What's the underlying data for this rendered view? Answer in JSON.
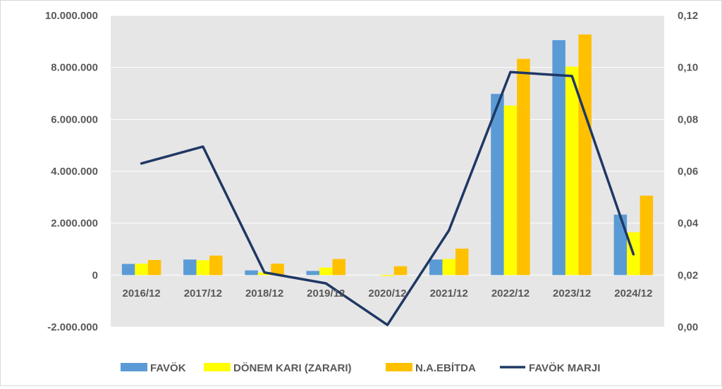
{
  "chart_data": {
    "type": "bar",
    "categories": [
      "2016/12",
      "2017/12",
      "2018/12",
      "2019/12",
      "2020/12",
      "2021/12",
      "2022/12",
      "2023/12",
      "2024/12"
    ],
    "series": [
      {
        "name": "FAVÖK",
        "type": "bar",
        "axis": "left",
        "color": "#5b9bd5",
        "values": [
          430000,
          600000,
          180000,
          160000,
          0,
          600000,
          6980000,
          9050000,
          2330000
        ]
      },
      {
        "name": "DÖNEM KARI (ZARARI)",
        "type": "bar",
        "axis": "left",
        "color": "#ffff00",
        "values": [
          440000,
          570000,
          100000,
          290000,
          -40000,
          620000,
          6530000,
          8030000,
          1650000
        ]
      },
      {
        "name": "N.A.EBİTDA",
        "type": "bar",
        "axis": "left",
        "color": "#ffc000",
        "values": [
          580000,
          750000,
          440000,
          620000,
          340000,
          1020000,
          8330000,
          9270000,
          3060000
        ]
      },
      {
        "name": "FAVÖK MARJI",
        "type": "line",
        "axis": "right",
        "color": "#1f3864",
        "values": [
          0.063,
          0.0695,
          0.021,
          0.0168,
          0.0008,
          0.0372,
          0.0982,
          0.0967,
          0.028
        ]
      }
    ],
    "y_left": {
      "min": -2000000,
      "max": 10000000,
      "ticks": [
        10000000,
        8000000,
        6000000,
        4000000,
        2000000,
        0,
        -2000000
      ],
      "tick_labels": [
        "10.000.000",
        "8.000.000",
        "6.000.000",
        "4.000.000",
        "2.000.000",
        "0",
        "-2.000.000"
      ]
    },
    "y_right": {
      "min": 0,
      "max": 0.12,
      "ticks": [
        0.12,
        0.1,
        0.08,
        0.06,
        0.04,
        0.02,
        0.0
      ],
      "tick_labels": [
        "0,12",
        "0,10",
        "0,08",
        "0,06",
        "0,04",
        "0,02",
        "0,00"
      ]
    },
    "grid": true,
    "legend_position": "bottom",
    "plot_background": "#e7e6e6",
    "gridline_color": "#ffffff"
  }
}
